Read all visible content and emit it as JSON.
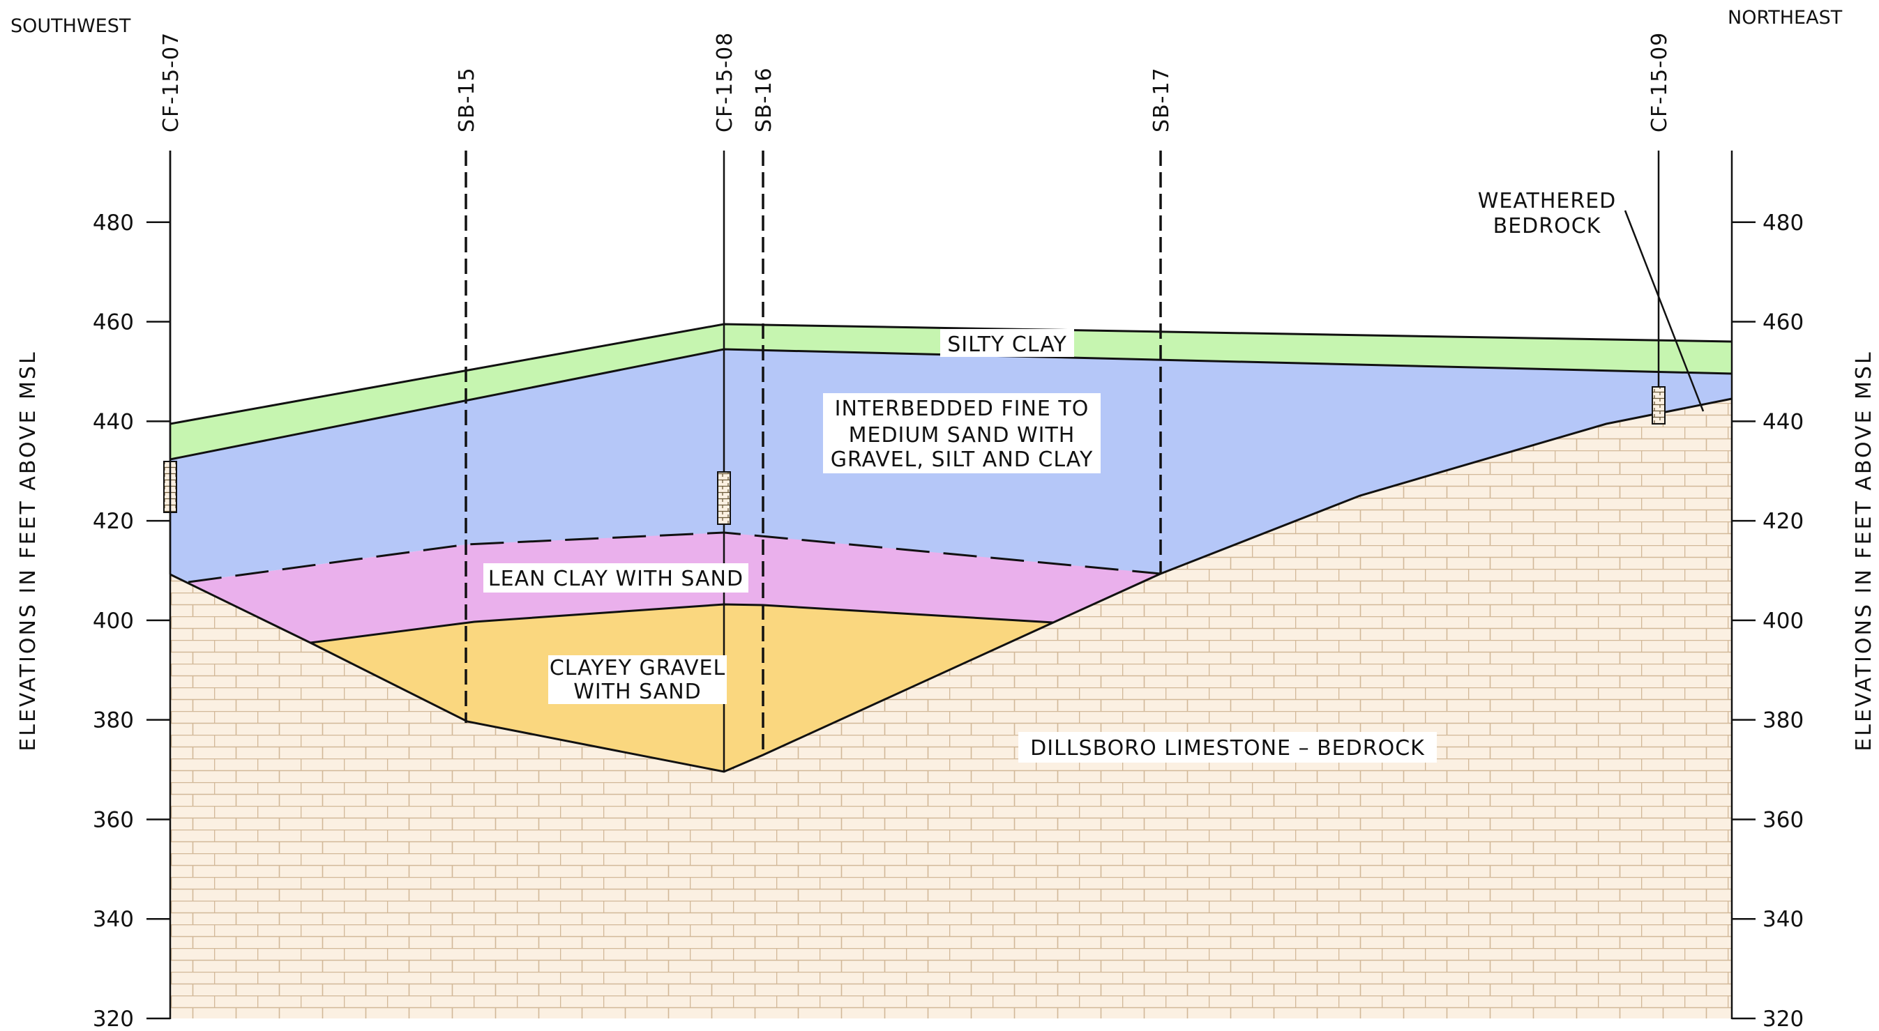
{
  "direction": {
    "left": "SOUTHWEST",
    "right": "NORTHEAST"
  },
  "axis": {
    "title_left": "ELEVATIONS IN FEET ABOVE MSL",
    "title_right": "ELEVATIONS IN FEET ABOVE MSL",
    "ticks": [
      "480",
      "460",
      "440",
      "420",
      "400",
      "380",
      "360",
      "340",
      "320"
    ],
    "range_ft": [
      320,
      490
    ]
  },
  "borings": [
    {
      "id": "CF-15-07",
      "type": "monitoring well"
    },
    {
      "id": "SB-15",
      "type": "soil boring"
    },
    {
      "id": "CF-15-08",
      "type": "monitoring well"
    },
    {
      "id": "SB-16",
      "type": "soil boring"
    },
    {
      "id": "SB-17",
      "type": "soil boring"
    },
    {
      "id": "CF-15-09",
      "type": "monitoring well"
    }
  ],
  "layers": {
    "silty_clay": {
      "label": "SILTY CLAY",
      "color": "#c6f5b0"
    },
    "sand": {
      "lines": [
        "INTERBEDDED FINE TO",
        "MEDIUM SAND WITH",
        "GRAVEL, SILT AND CLAY"
      ],
      "color": "#b5c7f8"
    },
    "lean_clay": {
      "label": "LEAN CLAY WITH SAND",
      "color": "#eab0ec"
    },
    "gravel": {
      "lines": [
        "CLAYEY GRAVEL",
        "WITH SAND"
      ],
      "color": "#fad77f"
    },
    "bedrock": {
      "label": "DILLSBORO LIMESTONE – BEDROCK",
      "color": "#fbf0e2",
      "brick_color": "#d2b898"
    },
    "weathered": {
      "lines": [
        "WEATHERED",
        "BEDROCK"
      ]
    }
  }
}
